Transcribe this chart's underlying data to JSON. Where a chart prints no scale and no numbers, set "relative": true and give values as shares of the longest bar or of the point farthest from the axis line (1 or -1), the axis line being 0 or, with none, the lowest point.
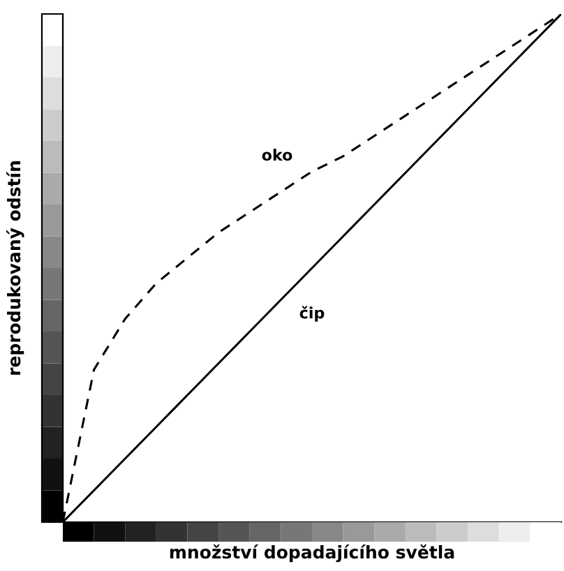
{
  "chart_data": {
    "type": "line",
    "relative": true,
    "xlabel": "množství dopadajícího světla",
    "ylabel": "reprodukovaný odstín",
    "categories": [
      null,
      null,
      null,
      null,
      null,
      null,
      null,
      null,
      null,
      null,
      null,
      null,
      null,
      null,
      null,
      null,
      null
    ],
    "series": [
      {
        "name": "oko",
        "color": "#000000",
        "line_style": "dashed",
        "values": [
          0,
          0.3,
          0.4,
          0.47,
          0.52,
          0.57,
          0.61,
          0.65,
          0.69,
          0.72,
          0.76,
          0.8,
          0.84,
          0.88,
          0.92,
          0.96,
          1
        ]
      },
      {
        "name": "čip",
        "color": "#000000",
        "line_style": "solid",
        "values": [
          0,
          0.0625,
          0.125,
          0.1875,
          0.25,
          0.3125,
          0.375,
          0.4375,
          0.5,
          0.5625,
          0.625,
          0.6875,
          0.75,
          0.8125,
          0.875,
          0.9375,
          1
        ]
      }
    ]
  }
}
